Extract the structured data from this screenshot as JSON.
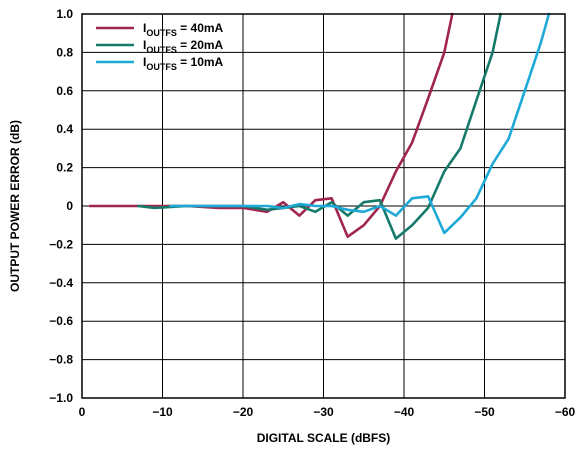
{
  "chart_data": {
    "type": "line",
    "title": "",
    "xlabel": "DIGITAL SCALE (dBFS)",
    "ylabel": "OUTPUT POWER ERROR (dB)",
    "xlim": [
      0,
      -60
    ],
    "ylim": [
      -1.0,
      1.0
    ],
    "x_ticks": [
      0,
      -10,
      -20,
      -30,
      -40,
      -50,
      -60
    ],
    "x_tick_labels": [
      "0",
      "−10",
      "−20",
      "−30",
      "−40",
      "−50",
      "−60"
    ],
    "y_ticks": [
      1.0,
      0.8,
      0.6,
      0.4,
      0.2,
      0,
      -0.2,
      -0.4,
      -0.6,
      -0.8,
      -1.0
    ],
    "y_tick_labels": [
      "1.0",
      "0.8",
      "0.6",
      "0.4",
      "0.2",
      "0",
      "−0.2",
      "−0.4",
      "−0.6",
      "−0.8",
      "−1.0"
    ],
    "grid": true,
    "legend_position": "top-left",
    "series": [
      {
        "name_main": "I",
        "name_sub": "OUTFS",
        "name_suffix": " = 40mA",
        "color": "#a0254f",
        "x": [
          -1,
          -3,
          -7,
          -10,
          -13,
          -17,
          -20,
          -23,
          -25,
          -27,
          -29,
          -31,
          -33,
          -35,
          -37,
          -39,
          -41,
          -43,
          -45,
          -46
        ],
        "y": [
          0,
          0,
          0,
          0,
          0,
          -0.01,
          -0.01,
          -0.03,
          0.02,
          -0.05,
          0.03,
          0.04,
          -0.16,
          -0.1,
          0.0,
          0.18,
          0.33,
          0.56,
          0.8,
          1.0
        ]
      },
      {
        "name_main": "I",
        "name_sub": "OUTFS",
        "name_suffix": " = 20mA",
        "color": "#167a6b",
        "x": [
          -7,
          -9,
          -13,
          -17,
          -20,
          -23,
          -25,
          -27,
          -29,
          -31,
          -33,
          -35,
          -37,
          -39,
          -41,
          -43,
          -45,
          -47,
          -49,
          -51,
          -52
        ],
        "y": [
          0,
          -0.01,
          0,
          0,
          0,
          -0.02,
          -0.01,
          0,
          -0.03,
          0.02,
          -0.05,
          0.02,
          0.03,
          -0.17,
          -0.1,
          -0.01,
          0.18,
          0.3,
          0.55,
          0.8,
          1.0
        ]
      },
      {
        "name_main": "I",
        "name_sub": "OUTFS",
        "name_suffix": " = 10mA",
        "color": "#1fa9d6",
        "x": [
          -11,
          -15,
          -19,
          -21,
          -23,
          -25,
          -27,
          -29,
          -31,
          -33,
          -35,
          -37,
          -39,
          -41,
          -43,
          -45,
          -47,
          -49,
          -51,
          -53,
          -55,
          -57,
          -58
        ],
        "y": [
          0,
          0,
          0,
          0,
          0,
          -0.01,
          0.01,
          0,
          0,
          -0.02,
          -0.03,
          0.0,
          -0.05,
          0.04,
          0.05,
          -0.14,
          -0.06,
          0.04,
          0.22,
          0.35,
          0.6,
          0.85,
          1.0
        ]
      }
    ]
  }
}
